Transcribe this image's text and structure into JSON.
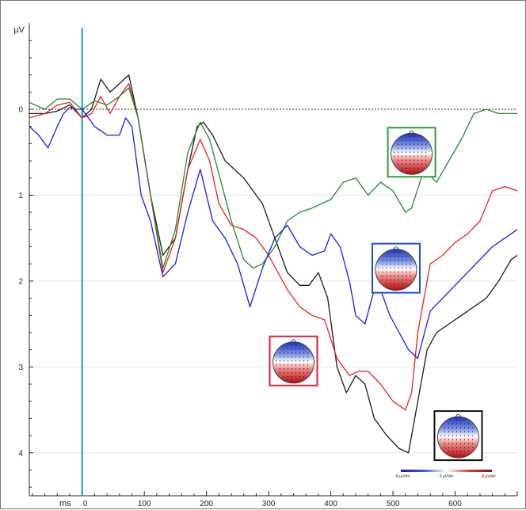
{
  "chart_data": {
    "type": "line",
    "y_unit_label": "µV",
    "x_unit_label": "ms",
    "x_ticks": [
      0,
      100,
      200,
      300,
      400,
      500,
      600
    ],
    "y_ticks": [
      0,
      1,
      2,
      3,
      4
    ],
    "xlim": [
      -85,
      700
    ],
    "ylim": [
      4.5,
      -0.95
    ],
    "y_axis": "inverted (positive down)",
    "grid": true,
    "zero_line": "dotted",
    "onset_marker_ms": 0,
    "series": [
      {
        "color": "#1a1a1a",
        "x": [
          -85,
          -60,
          -40,
          -20,
          0,
          15,
          30,
          45,
          60,
          75,
          90,
          110,
          130,
          150,
          170,
          185,
          195,
          210,
          230,
          260,
          290,
          310,
          330,
          350,
          365,
          380,
          395,
          410,
          425,
          440,
          455,
          470,
          490,
          510,
          525,
          540,
          555,
          570,
          590,
          610,
          630,
          650,
          670,
          690,
          700
        ],
        "y": [
          0.05,
          0.05,
          0.02,
          -0.05,
          0.1,
          0.0,
          -0.35,
          -0.2,
          -0.3,
          -0.4,
          0.1,
          1.0,
          1.7,
          1.5,
          0.7,
          0.2,
          0.15,
          0.3,
          0.6,
          0.8,
          1.1,
          1.5,
          1.9,
          2.05,
          2.05,
          1.9,
          2.2,
          3.0,
          3.3,
          3.1,
          3.2,
          3.6,
          3.8,
          3.95,
          4.0,
          3.4,
          2.8,
          2.6,
          2.5,
          2.4,
          2.3,
          2.2,
          2.0,
          1.75,
          1.7
        ]
      },
      {
        "color": "#e8231c",
        "x": [
          -85,
          -60,
          -40,
          -20,
          0,
          15,
          30,
          45,
          60,
          75,
          90,
          110,
          130,
          150,
          170,
          190,
          205,
          220,
          240,
          260,
          280,
          300,
          330,
          350,
          370,
          390,
          410,
          430,
          445,
          460,
          480,
          500,
          520,
          530,
          540,
          560,
          580,
          600,
          620,
          640,
          660,
          680,
          700
        ],
        "y": [
          0.1,
          0.05,
          -0.05,
          -0.08,
          0.1,
          0.05,
          -0.15,
          0.05,
          -0.15,
          -0.3,
          0.1,
          1.0,
          1.9,
          1.5,
          0.7,
          0.35,
          0.6,
          1.1,
          1.35,
          1.4,
          1.5,
          1.7,
          2.1,
          2.3,
          2.4,
          2.45,
          2.9,
          3.1,
          3.05,
          3.05,
          3.2,
          3.4,
          3.5,
          3.3,
          2.6,
          1.8,
          1.7,
          1.55,
          1.45,
          1.3,
          0.95,
          0.9,
          0.95
        ]
      },
      {
        "color": "#1f8a2a",
        "x": [
          -85,
          -60,
          -40,
          -20,
          0,
          20,
          40,
          60,
          75,
          90,
          110,
          130,
          150,
          170,
          190,
          205,
          220,
          240,
          260,
          275,
          290,
          310,
          330,
          350,
          370,
          400,
          420,
          440,
          460,
          480,
          500,
          520,
          530,
          550,
          570,
          590,
          610,
          630,
          650,
          670,
          700
        ],
        "y": [
          -0.08,
          0.0,
          -0.12,
          -0.12,
          0.0,
          -0.1,
          -0.05,
          -0.15,
          -0.25,
          0.1,
          1.0,
          1.85,
          1.4,
          0.5,
          0.15,
          0.35,
          0.75,
          1.3,
          1.75,
          1.85,
          1.8,
          1.6,
          1.3,
          1.2,
          1.15,
          1.05,
          0.85,
          0.8,
          1.0,
          0.85,
          0.95,
          1.2,
          1.15,
          0.7,
          0.85,
          0.6,
          0.35,
          0.05,
          0.0,
          0.05,
          0.05
        ]
      },
      {
        "color": "#1a1aee",
        "x": [
          -85,
          -70,
          -55,
          -40,
          -30,
          -20,
          -10,
          0,
          20,
          40,
          60,
          70,
          80,
          95,
          110,
          130,
          150,
          170,
          190,
          210,
          230,
          250,
          270,
          290,
          310,
          330,
          350,
          370,
          390,
          400,
          415,
          430,
          440,
          455,
          470,
          480,
          495,
          510,
          525,
          540,
          560,
          580,
          600,
          620,
          640,
          660,
          680,
          700
        ],
        "y": [
          0.2,
          0.3,
          0.45,
          0.2,
          0.05,
          -0.02,
          0.0,
          0.0,
          0.2,
          0.3,
          0.3,
          0.1,
          0.2,
          1.0,
          1.3,
          1.95,
          1.8,
          1.2,
          0.7,
          1.3,
          1.5,
          1.8,
          2.3,
          1.85,
          1.5,
          1.35,
          1.6,
          1.7,
          1.65,
          1.45,
          1.6,
          2.0,
          2.4,
          2.5,
          2.1,
          2.1,
          2.4,
          2.6,
          2.8,
          2.9,
          2.35,
          2.2,
          2.05,
          1.9,
          1.75,
          1.6,
          1.5,
          1.4
        ]
      }
    ],
    "topomaps": [
      {
        "frame_color": "#2e9e3a",
        "anchor_ms": 530,
        "anchor_uv": 0.5
      },
      {
        "frame_color": "#1a4fe0",
        "anchor_ms": 505,
        "anchor_uv": 1.85
      },
      {
        "frame_color": "#e01a3a",
        "anchor_ms": 340,
        "anchor_uv": 2.93
      },
      {
        "frame_color": "#111111",
        "anchor_ms": 605,
        "anchor_uv": 3.8
      }
    ],
    "colorbar": {
      "labels": [
        "-8 µV/m²",
        "0 µV/m²",
        "8 µV/m²"
      ],
      "colors": [
        "#1a1a9c",
        "#3a5adc",
        "#ffffff",
        "#dc3a3a",
        "#9c0a0a"
      ]
    }
  }
}
